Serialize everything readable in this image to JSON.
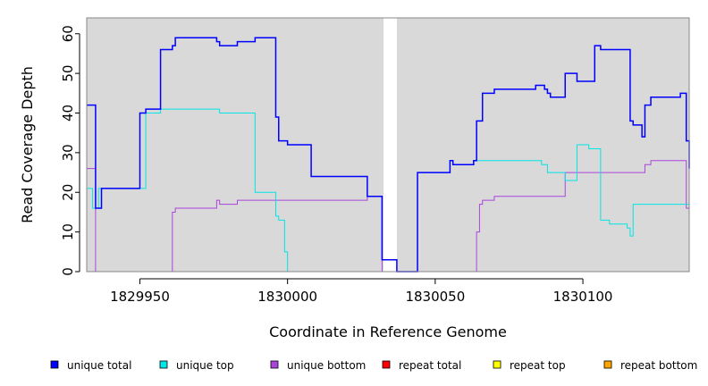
{
  "chart_data": {
    "type": "line",
    "xlabel": "Coordinate in Reference Genome",
    "ylabel": "Read Coverage Depth",
    "xlim": [
      1829932,
      1830136
    ],
    "ylim": [
      0,
      64
    ],
    "x_ticks": [
      1829950,
      1830000,
      1830050,
      1830100
    ],
    "y_ticks": [
      0,
      10,
      20,
      30,
      40,
      50,
      60
    ],
    "background_regions": [
      [
        1829932,
        1830032.5
      ],
      [
        1830037,
        1830136
      ]
    ],
    "legend_position": "bottom",
    "series": [
      {
        "name": "unique total",
        "color": "#0000ff",
        "x": [
          1829932,
          1829935,
          1829937,
          1829938.5,
          1829950,
          1829952,
          1829957,
          1829961,
          1829962,
          1829976,
          1829977,
          1829983,
          1829989,
          1829996,
          1829997,
          1830000,
          1830008,
          1830027,
          1830032,
          1830037,
          1830044,
          1830055,
          1830056,
          1830063,
          1830064,
          1830066,
          1830070,
          1830084,
          1830087,
          1830088,
          1830089,
          1830094,
          1830098,
          1830104,
          1830106,
          1830116,
          1830117,
          1830120,
          1830121,
          1830123,
          1830133,
          1830135,
          1830136
        ],
        "values": [
          42,
          16,
          21,
          21,
          40,
          41,
          56,
          57,
          59,
          58,
          57,
          58,
          59,
          39,
          33,
          32,
          24,
          19,
          3,
          0,
          25,
          28,
          27,
          28,
          38,
          45,
          46,
          47,
          46,
          45,
          44,
          50,
          48,
          57,
          56,
          38,
          37,
          34,
          42,
          44,
          45,
          33,
          26
        ]
      },
      {
        "name": "unique top",
        "color": "#00e5e5",
        "x": [
          1829932,
          1829934,
          1829936,
          1829950,
          1829952,
          1829957,
          1829976,
          1829977,
          1829988,
          1829989,
          1829996,
          1829997,
          1829999,
          1830000,
          1830008,
          1830032,
          1830037,
          1830044,
          1830055,
          1830056,
          1830063,
          1830084,
          1830086,
          1830088,
          1830094,
          1830098,
          1830102,
          1830106,
          1830109,
          1830115,
          1830116,
          1830117,
          1830122,
          1830133,
          1830136
        ],
        "values": [
          21,
          16,
          21,
          21,
          40,
          41,
          41,
          40,
          40,
          20,
          14,
          13,
          5,
          0,
          0,
          0,
          0,
          25,
          28,
          27,
          28,
          28,
          27,
          25,
          23,
          32,
          31,
          13,
          12,
          11,
          9,
          17,
          17,
          17,
          17
        ]
      },
      {
        "name": "unique bottom",
        "color": "#aa44dd",
        "x": [
          1829932,
          1829935,
          1829957,
          1829961,
          1829962,
          1829976,
          1829977,
          1829983,
          1830027,
          1830032,
          1830055,
          1830064,
          1830065,
          1830066,
          1830070,
          1830094,
          1830098,
          1830110,
          1830120,
          1830121,
          1830123,
          1830133,
          1830135,
          1830136
        ],
        "values": [
          26,
          0,
          0,
          15,
          16,
          18,
          17,
          18,
          19,
          0,
          0,
          10,
          17,
          18,
          19,
          25,
          25,
          25,
          25,
          27,
          28,
          28,
          16,
          9
        ]
      },
      {
        "name": "repeat total",
        "color": "#ff0000",
        "x": [
          1829932,
          1830136
        ],
        "values": [
          0,
          0
        ]
      },
      {
        "name": "repeat top",
        "color": "#ffff00",
        "x": [
          1829932,
          1830136
        ],
        "values": [
          0,
          0
        ]
      },
      {
        "name": "repeat bottom",
        "color": "#ffa500",
        "x": [
          1829932,
          1830136
        ],
        "values": [
          0,
          0
        ]
      }
    ]
  }
}
